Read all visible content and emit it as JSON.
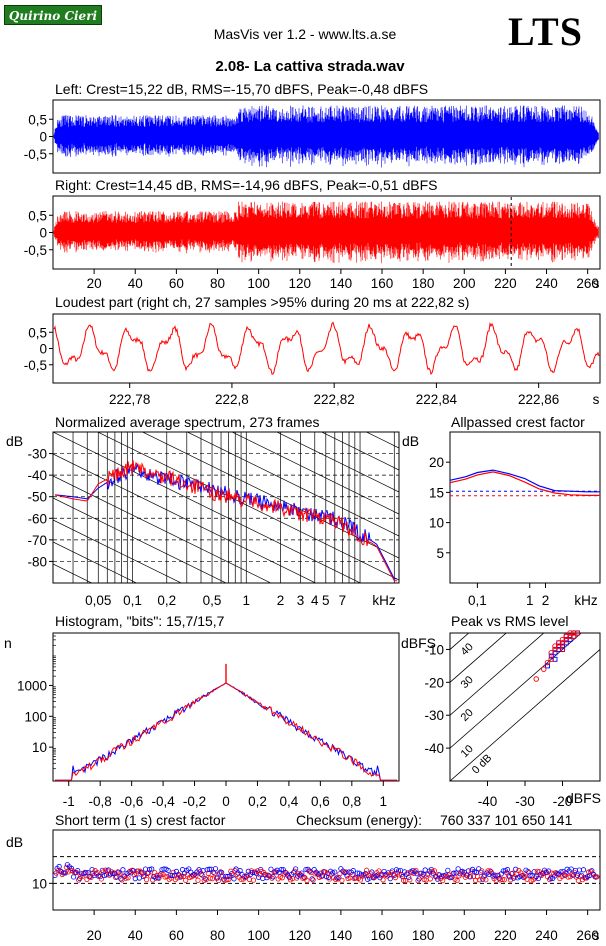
{
  "header": {
    "badge": "Quirino Cieri",
    "app_title": "MasVis ver 1.2 - www.lts.a.se",
    "logo": "LTS",
    "file_name": "2.08- La cattiva strada.wav"
  },
  "colors": {
    "left": "#0000ff",
    "right": "#ff0000"
  },
  "chart_data": [
    {
      "id": "left",
      "type": "line",
      "title": "Left: Crest=15,22 dB, RMS=-15,70 dBFS, Peak=-0,48 dBFS",
      "xlim": [
        0,
        266
      ],
      "ylim": [
        -1,
        1
      ],
      "y_tick_labels": [
        "0,5",
        "0",
        "-0,5"
      ],
      "y_tick_values": [
        0.5,
        0,
        -0.5
      ]
    },
    {
      "id": "right",
      "type": "line",
      "title": "Right: Crest=14,45 dB, RMS=-14,96 dBFS, Peak=-0,51 dBFS",
      "xlim": [
        0,
        266
      ],
      "ylim": [
        -1,
        1
      ],
      "y_tick_labels": [
        "0,5",
        "0",
        "-0,5"
      ],
      "y_tick_values": [
        0.5,
        0,
        -0.5
      ],
      "x_tick_labels": [
        "20",
        "40",
        "60",
        "80",
        "100",
        "120",
        "140",
        "160",
        "180",
        "200",
        "220",
        "240",
        "260"
      ],
      "x_unit": "s",
      "marker_x": 222.82
    },
    {
      "id": "loudest",
      "type": "line",
      "title": "Loudest part (right ch, 27 samples >95% during 20 ms at 222,82 s)",
      "xlim": [
        222.765,
        222.872
      ],
      "ylim": [
        -1,
        1
      ],
      "y_tick_labels": [
        "0,5",
        "0",
        "-0,5"
      ],
      "y_tick_values": [
        0.5,
        0,
        -0.5
      ],
      "x_tick_labels": [
        "222,78",
        "222,8",
        "222,82",
        "222,84",
        "222,86"
      ],
      "x_tick_values": [
        222.78,
        222.8,
        222.82,
        222.84,
        222.86
      ],
      "x_unit": "s"
    },
    {
      "id": "spectrum",
      "type": "line",
      "title": "Normalized average spectrum, 273 frames",
      "ylabel": "dB",
      "ylim": [
        -90,
        -20
      ],
      "y_tick_labels": [
        "-30",
        "-40",
        "-50",
        "-60",
        "-70",
        "-80"
      ],
      "y_tick_values": [
        -30,
        -40,
        -50,
        -60,
        -70,
        -80
      ],
      "x_scale": "log",
      "xlim": [
        0.02,
        22
      ],
      "x_tick_labels": [
        "0,05",
        "0,1",
        "0,2",
        "0,5",
        "1",
        "2",
        "3",
        "4",
        "5",
        "7",
        "kHz"
      ],
      "x_tick_values": [
        0.05,
        0.1,
        0.2,
        0.5,
        1,
        2,
        3,
        4,
        5,
        7
      ],
      "series": [
        {
          "color": "#0000ff",
          "x": [
            0.02,
            0.03,
            0.04,
            0.05,
            0.07,
            0.1,
            0.13,
            0.2,
            0.3,
            0.5,
            1,
            2,
            3,
            5,
            7,
            10,
            14,
            20
          ],
          "y": [
            -49,
            -50,
            -51,
            -46,
            -41,
            -37,
            -40,
            -42,
            -44,
            -47,
            -51,
            -54,
            -57,
            -59,
            -62,
            -67,
            -72,
            -88
          ]
        },
        {
          "color": "#ff0000",
          "x": [
            0.02,
            0.03,
            0.04,
            0.05,
            0.07,
            0.1,
            0.13,
            0.2,
            0.3,
            0.5,
            1,
            2,
            3,
            5,
            7,
            10,
            14,
            20
          ],
          "y": [
            -49,
            -51,
            -52,
            -44,
            -40,
            -36,
            -39,
            -41,
            -44,
            -48,
            -52,
            -55,
            -58,
            -60,
            -63,
            -68,
            -73,
            -89
          ]
        }
      ]
    },
    {
      "id": "allpassed",
      "type": "line",
      "title": "Allpassed crest factor",
      "ylabel": "dB",
      "ylim": [
        0,
        25
      ],
      "y_tick_labels": [
        "20",
        "15",
        "10",
        "5"
      ],
      "y_tick_values": [
        20,
        15,
        10,
        5
      ],
      "x_scale": "log",
      "xlim": [
        0.03,
        22
      ],
      "x_tick_labels": [
        "0,1",
        "1",
        "2",
        "kHz"
      ],
      "x_tick_values": [
        0.1,
        1,
        2
      ],
      "ref_lines": [
        15.2,
        14.45
      ],
      "series": [
        {
          "color": "#0000ff",
          "x": [
            0.03,
            0.06,
            0.1,
            0.2,
            0.4,
            0.8,
            1.5,
            3,
            6,
            12,
            22
          ],
          "y": [
            17.0,
            17.6,
            18.3,
            18.7,
            18.1,
            17.3,
            16.1,
            15.3,
            15.2,
            15.1,
            15.1
          ]
        },
        {
          "color": "#ff0000",
          "x": [
            0.03,
            0.06,
            0.1,
            0.2,
            0.4,
            0.8,
            1.5,
            3,
            6,
            12,
            22
          ],
          "y": [
            16.6,
            17.2,
            17.9,
            18.4,
            17.8,
            16.7,
            15.6,
            14.9,
            14.6,
            14.5,
            14.5
          ]
        }
      ]
    },
    {
      "id": "histogram",
      "type": "line",
      "title": "Histogram, \"bits\": 15,7/15,7",
      "ylabel": "n",
      "y_scale": "log",
      "ylim": [
        0.8,
        50000
      ],
      "y_tick_labels": [
        "1000",
        "100",
        "10"
      ],
      "y_tick_values": [
        1000,
        100,
        10
      ],
      "xlim": [
        -1.1,
        1.1
      ],
      "x_tick_labels": [
        "-1",
        "-0,8",
        "-0,6",
        "-0,4",
        "-0,2",
        "0",
        "0,2",
        "0,4",
        "0,6",
        "0,8",
        "1"
      ],
      "x_tick_values": [
        -1,
        -0.8,
        -0.6,
        -0.4,
        -0.2,
        0,
        0.2,
        0.4,
        0.6,
        0.8,
        1
      ],
      "peak_count": 1200,
      "spike_count": 5000
    },
    {
      "id": "peak_vs_rms",
      "type": "scatter",
      "title": "Peak vs RMS level",
      "ylabel": "dBFS",
      "xlabel": "dBFS",
      "xlim": [
        -50,
        -10
      ],
      "ylim": [
        -50,
        -5
      ],
      "y_tick_labels": [
        "-10",
        "-20",
        "-30",
        "-40"
      ],
      "y_tick_values": [
        -10,
        -20,
        -30,
        -40
      ],
      "x_tick_labels": [
        "-40",
        "-30",
        "-20"
      ],
      "x_tick_values": [
        -40,
        -30,
        -20
      ],
      "diag_labels": [
        "40",
        "30",
        "20",
        "10",
        "0 dB"
      ],
      "points_left": [
        [
          -23,
          -12
        ],
        [
          -22,
          -11
        ],
        [
          -21,
          -9
        ],
        [
          -20,
          -8
        ],
        [
          -19,
          -7
        ],
        [
          -19,
          -6
        ],
        [
          -18,
          -6
        ],
        [
          -17,
          -5
        ],
        [
          -22,
          -13
        ],
        [
          -21,
          -10
        ],
        [
          -20,
          -9
        ],
        [
          -18,
          -7
        ],
        [
          -24,
          -15
        ],
        [
          -20,
          -10
        ],
        [
          -19,
          -8
        ],
        [
          -17,
          -6
        ],
        [
          -16,
          -5
        ],
        [
          -21,
          -8
        ],
        [
          -22,
          -10
        ]
      ],
      "points_right": [
        [
          -23,
          -11
        ],
        [
          -22,
          -10
        ],
        [
          -21,
          -9
        ],
        [
          -20,
          -8
        ],
        [
          -19,
          -6
        ],
        [
          -18,
          -6
        ],
        [
          -17,
          -5
        ],
        [
          -16,
          -5
        ],
        [
          -24,
          -14
        ],
        [
          -25,
          -16
        ],
        [
          -27,
          -19
        ],
        [
          -20,
          -7
        ],
        [
          -21,
          -8
        ],
        [
          -19,
          -7
        ],
        [
          -18,
          -5
        ],
        [
          -22,
          -9
        ],
        [
          -23,
          -13
        ],
        [
          -20,
          -10
        ],
        [
          -17,
          -6
        ]
      ]
    },
    {
      "id": "short_term_crest",
      "type": "scatter",
      "title": "Short term (1 s) crest factor",
      "checksum_label": "Checksum (energy):",
      "checksum_value": "760 337 101 650 141",
      "ylabel": "dB",
      "ylim": [
        0,
        30
      ],
      "y_tick_labels": [
        "10"
      ],
      "y_tick_values": [
        10
      ],
      "ref_lines": [
        20,
        10
      ],
      "xlim": [
        0,
        266
      ],
      "x_tick_labels": [
        "20",
        "40",
        "60",
        "80",
        "100",
        "120",
        "140",
        "160",
        "180",
        "200",
        "220",
        "240",
        "260"
      ],
      "x_unit": "s",
      "mean_left": 13.5,
      "mean_right": 13.0
    }
  ]
}
